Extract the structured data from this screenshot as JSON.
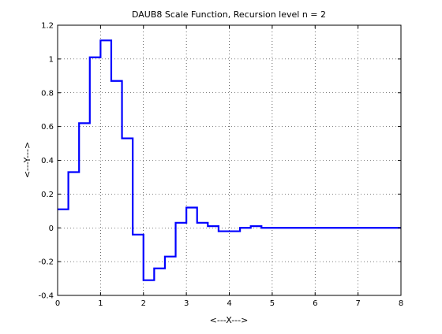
{
  "chart_data": {
    "type": "line",
    "title": "DAUB8 Scale Function, Recursion level n = 2",
    "xlabel": "<---X--->",
    "ylabel": "<---Y--->",
    "xlim": [
      0,
      8
    ],
    "ylim": [
      -0.4,
      1.2
    ],
    "x_ticks": [
      "0",
      "1",
      "2",
      "3",
      "4",
      "5",
      "6",
      "7",
      "8"
    ],
    "y_ticks": [
      "-0.4",
      "-0.2",
      "0",
      "0.2",
      "0.4",
      "0.6",
      "0.8",
      "1",
      "1.2"
    ],
    "grid": true,
    "line_color": "#0000ff",
    "series": [
      {
        "step": 0.25,
        "x": [
          0,
          0.25,
          0.5,
          0.75,
          1,
          1.25,
          1.5,
          1.75,
          2,
          2.25,
          2.5,
          2.75,
          3,
          3.25,
          3.5,
          3.75,
          4,
          4.25,
          4.5,
          4.75,
          5,
          5.25,
          5.5,
          5.75,
          6,
          6.25,
          6.5,
          6.75,
          7,
          7.25,
          7.5,
          7.75
        ],
        "y": [
          0.11,
          0.33,
          0.62,
          1.01,
          1.11,
          0.87,
          0.53,
          -0.04,
          -0.31,
          -0.24,
          -0.17,
          0.03,
          0.12,
          0.03,
          0.01,
          -0.02,
          -0.02,
          0.0,
          0.01,
          0.0,
          0,
          0,
          0,
          0,
          0,
          0,
          0,
          0,
          0,
          0,
          0,
          0
        ]
      }
    ]
  }
}
